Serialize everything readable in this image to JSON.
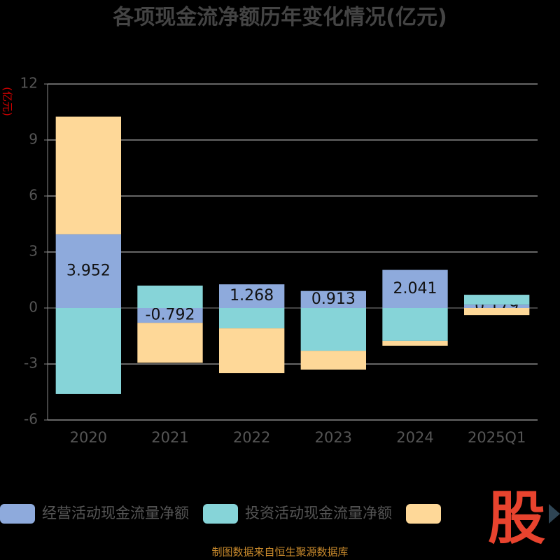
{
  "chart_data": {
    "type": "bar",
    "stacked": true,
    "title": "各项现金流净额历年变化情况(亿元)",
    "y_label": "(亿元)",
    "categories": [
      "2020",
      "2021",
      "2022",
      "2023",
      "2024",
      "2025Q1"
    ],
    "series": [
      {
        "name": "经营活动现金流量净额",
        "color": "#8eaadc",
        "values": [
          3.952,
          -0.792,
          1.268,
          0.913,
          2.041,
          0.179
        ],
        "show_labels": true
      },
      {
        "name": "投资活动现金流量净额",
        "color": "#86d4d8",
        "values": [
          -4.61,
          1.2,
          -1.09,
          -2.29,
          -1.76,
          0.53
        ]
      },
      {
        "color": "#fed898",
        "values": [
          6.3,
          -2.14,
          -2.4,
          -1.01,
          -0.26,
          -0.38
        ]
      }
    ],
    "ylim": [
      -6,
      12
    ],
    "yticks": [
      -6,
      -3,
      0,
      3,
      6,
      9,
      12
    ],
    "grid": true,
    "watermark": "股",
    "footer": "制图数据来自恒生聚源数据库"
  }
}
